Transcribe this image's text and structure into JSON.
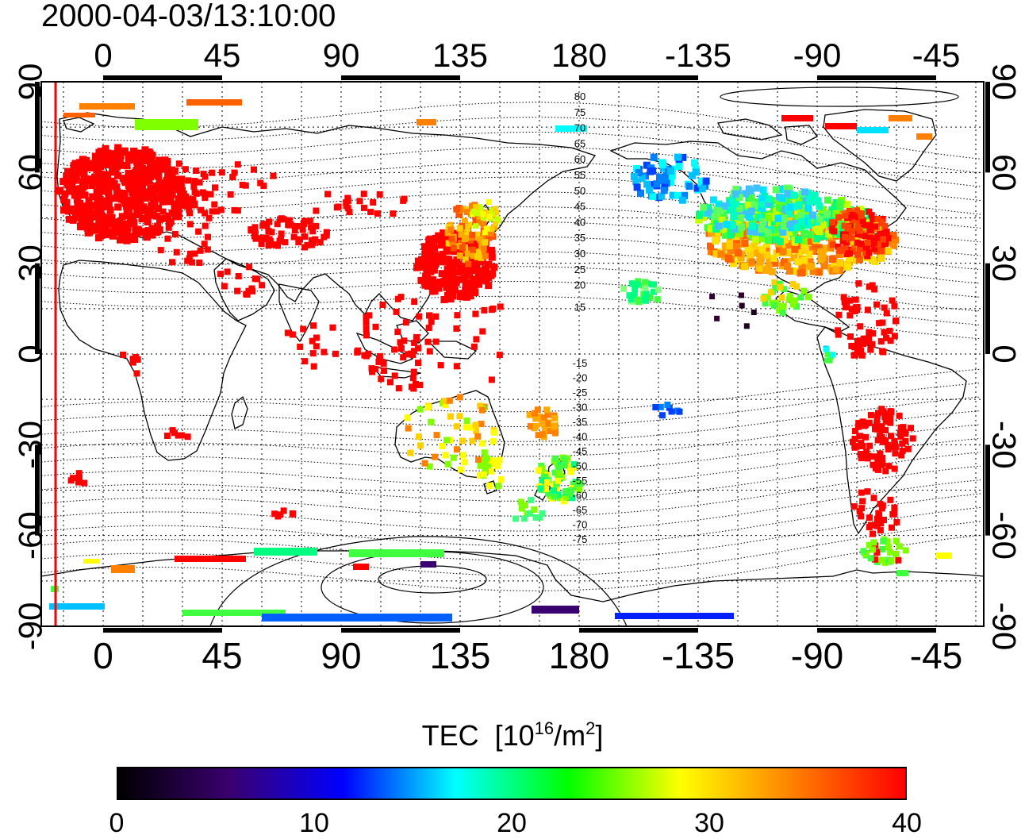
{
  "title": "2000-04-03/13:10:00",
  "top_lon_labels": [
    "0",
    "45",
    "90",
    "135",
    "180",
    "-135",
    "-90",
    "-45"
  ],
  "bottom_lon_labels": [
    "0",
    "45",
    "90",
    "135",
    "180",
    "-135",
    "-90",
    "-45"
  ],
  "left_lat_labels": [
    "90",
    "60",
    "30",
    "0",
    "-30",
    "-60",
    "-90"
  ],
  "right_lat_labels": [
    "90",
    "60",
    "30",
    "0",
    "-30",
    "-60",
    "-90"
  ],
  "contour_labels_north": [
    "80",
    "75",
    "70",
    "65",
    "60",
    "55",
    "50",
    "45",
    "40",
    "35",
    "30",
    "25",
    "20",
    "15"
  ],
  "contour_labels_south": [
    "-15",
    "-20",
    "-25",
    "-30",
    "-35",
    "-40",
    "-45",
    "-50",
    "-55",
    "-60",
    "-65",
    "-70",
    "-75"
  ],
  "colorbar": {
    "label_main": "TEC",
    "label_unit_pre": "[10",
    "label_exp1": "16",
    "label_unit_mid": "/m",
    "label_exp2": "2",
    "label_unit_post": "]",
    "min": 0,
    "max": 40,
    "ticks": [
      "0",
      "10",
      "20",
      "30",
      "40"
    ],
    "colors": [
      "#000000",
      "#3a0070",
      "#0000ff",
      "#00ffff",
      "#00ff00",
      "#ffff00",
      "#ff8000",
      "#ff0000"
    ]
  }
}
